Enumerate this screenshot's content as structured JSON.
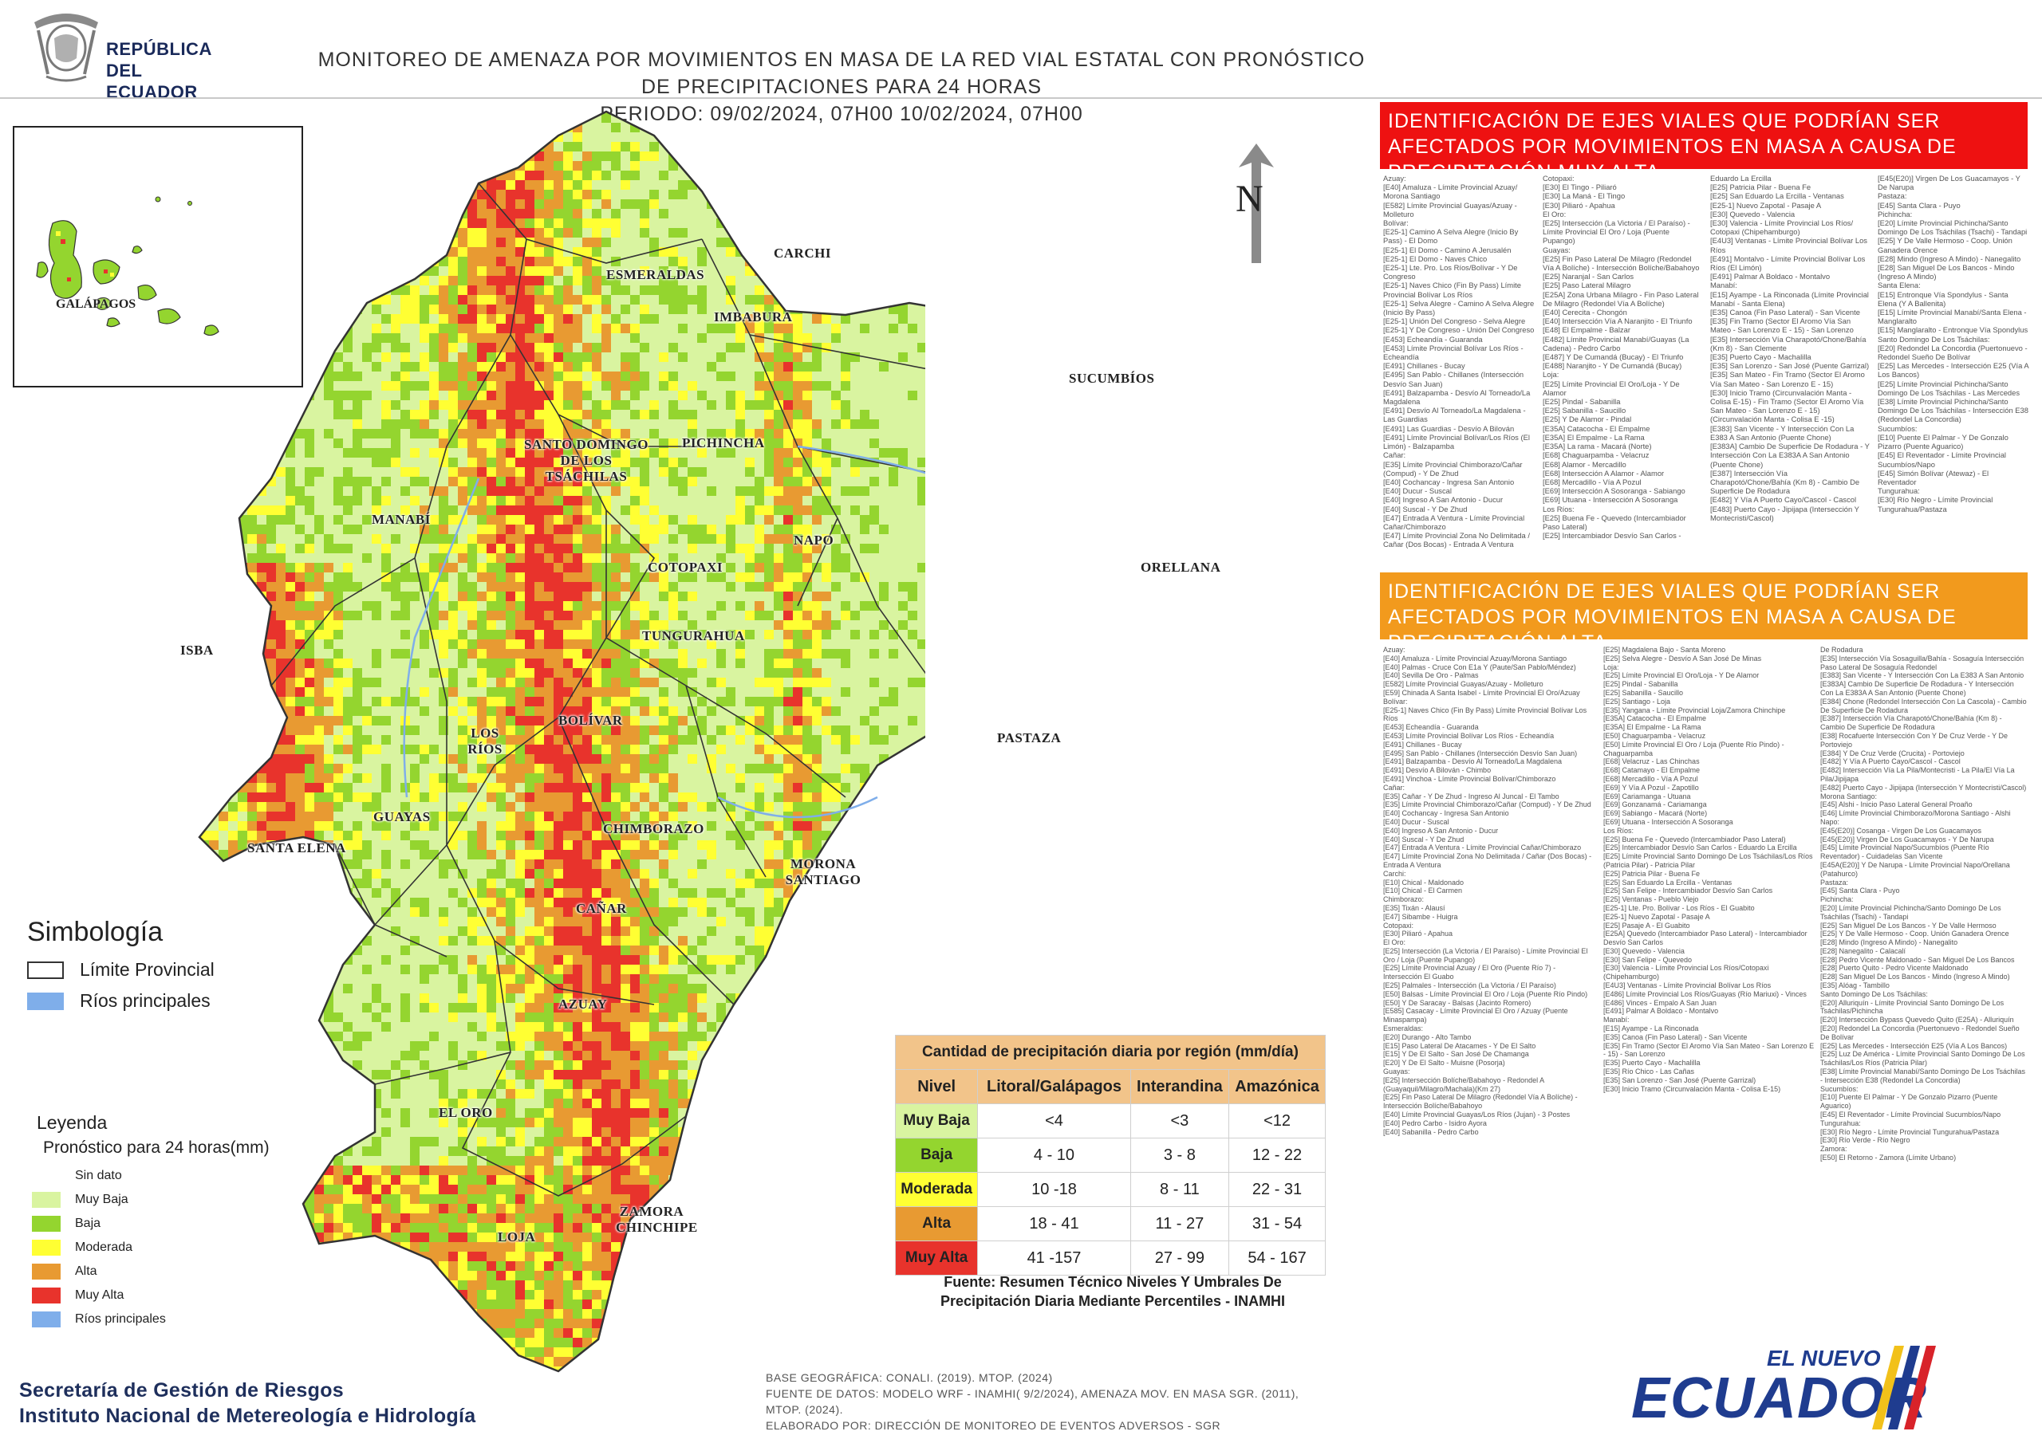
{
  "header": {
    "logo_text_line1": "REPÚBLICA",
    "logo_text_line2": "DEL ECUADOR",
    "title_line1": "MONITOREO DE AMENAZA POR MOVIMIENTOS EN MASA DE LA RED VIAL  ESTATAL  CON PRONÓSTICO  DE  PRECIPITACIONES PARA 24 HORAS",
    "title_line2": "PERIODO: 09/02/2024, 07H00 10/02/2024, 07H00"
  },
  "map": {
    "north_label": "N",
    "inset_label": "GALÁPAGOS",
    "provinces": [
      "ESMERALDAS",
      "CARCHI",
      "IMBABURA",
      "SUCUMBÍOS",
      "SANTO DOMINGO DE LOS TSÁCHILAS",
      "PICHINCHA",
      "MANABÍ",
      "NAPO",
      "ORELLANA",
      "COTOPAXI",
      "TUNGURAHUA",
      "ISBA",
      "BOLÍVAR",
      "LOS RÍOS",
      "PASTAZA",
      "GUAYAS",
      "SANTA ELENA",
      "CHIMBORAZO",
      "MORONA SANTIAGO",
      "CAÑAR",
      "AZUAY",
      "EL ORO",
      "ZAMORA CHINCHIPE",
      "LOJA"
    ],
    "colors": {
      "muy_baja": "#d9f4a0",
      "baja": "#94d52f",
      "moderada": "#ffff33",
      "alta": "#e89a32",
      "muy_alta": "#e8332c",
      "rios": "#7faeea",
      "limite": "#333333"
    }
  },
  "symbology": {
    "title": "Simbología",
    "items": [
      {
        "label": "Límite Provincial",
        "icon": "outline-box-icon"
      },
      {
        "label": "Ríos principales",
        "icon": "river-box-icon"
      }
    ]
  },
  "legend": {
    "title": "Leyenda",
    "subtitle": "Pronóstico para 24 horas(mm)",
    "items": [
      {
        "label": "Sin dato",
        "color": "#ffffff"
      },
      {
        "label": "Muy Baja",
        "color": "#d9f4a0"
      },
      {
        "label": "Baja",
        "color": "#94d52f"
      },
      {
        "label": "Moderada",
        "color": "#ffff33"
      },
      {
        "label": "Alta",
        "color": "#e89a32"
      },
      {
        "label": "Muy Alta",
        "color": "#e8332c"
      },
      {
        "label": "Ríos principales",
        "color": "#7faeea"
      }
    ]
  },
  "precip_table": {
    "caption": "Cantidad de precipitación diaria por región (mm/día)",
    "headers": [
      "Nivel",
      "Litoral/Galápagos",
      "Interandina",
      "Amazónica"
    ],
    "rows": [
      {
        "nivel": "Muy Baja",
        "color": "#d9f4a0",
        "litoral": "<4",
        "interandina": "<3",
        "amazonica": "<12"
      },
      {
        "nivel": "Baja",
        "color": "#94d52f",
        "litoral": "4 - 10",
        "interandina": "3 - 8",
        "amazonica": "12 - 22"
      },
      {
        "nivel": "Moderada",
        "color": "#ffff33",
        "litoral": "10 -18",
        "interandina": "8 - 11",
        "amazonica": "22 - 31"
      },
      {
        "nivel": "Alta",
        "color": "#e89a32",
        "litoral": "18 - 41",
        "interandina": "11 - 27",
        "amazonica": "31 - 54"
      },
      {
        "nivel": "Muy Alta",
        "color": "#e8332c",
        "litoral": "41 -157",
        "interandina": "27 - 99",
        "amazonica": "54 - 167"
      }
    ],
    "source_line1": "Fuente: Resumen Técnico Niveles Y Umbrales De",
    "source_line2": "Precipitación Diaria Mediante Percentiles - INAMHI"
  },
  "panel_muy_alta": {
    "title": "IDENTIFICACIÓN DE EJES VIALES QUE PODRÍAN SER AFECTADOS POR MOVIMIENTOS EN MASA A CAUSA DE PRECIPITACIÓN MUY ALTA",
    "col1": [
      "Azuay:",
      "[E40] Amaluza - Límite Provincial Azuay/ Morona Santiago",
      "[E582] Límite Provincial Guayas/Azuay - Molleturo",
      "Bolívar:",
      "[E25-1] Camino A Selva Alegre (Inicio By Pass) - El Domo",
      "[E25-1] El Domo - Camino A Jerusalén",
      "[E25-1] El Domo - Naves Chico",
      "[E25-1] Lte. Pro. Los Ríos/Bolívar - Y De Congreso",
      "[E25-1] Naves Chico (Fin By Pass) Límite Provincial Bolívar Los Ríos",
      "[E25-1] Selva Alegre - Camino A Selva Alegre (Inicio By Pass)",
      "[E25-1] Unión Del Congreso - Selva Alegre",
      "[E25-1] Y De Congreso - Unión Del Congreso",
      "[E453] Echeandía - Guaranda",
      "[E453] Límite Provincial Bolívar Los Ríos - Echeandía",
      "[E491] Chillanes - Bucay",
      "[E495] San Pablo - Chillanes (Intersección Desvío San Juan)",
      "[E491] Balzapamba - Desvío Al Torneado/La Magdalena",
      "[E491] Desvío Al Torneado/La Magdalena - Las Guardias",
      "[E491] Las Guardias - Desvío A Bilován",
      "[E491] Límite Provincial Bolívar/Los Ríos (El Limón) - Balzapamba",
      "Cañar:",
      "[E35] Límite Provincial Chimborazo/Cañar (Compud) - Y De Zhud",
      "[E40] Cochancay - Ingresa San Antonio",
      "[E40] Ducur - Suscal",
      "[E40] Ingreso A San Antonio - Ducur",
      "[E40] Suscal - Y De Zhud",
      "[E47] Entrada A Ventura - Límite Provincial Cañar/Chimborazo",
      "[E47] Límite Provincial Zona No Delimitada / Cañar (Dos Bocas) - Entrada A Ventura"
    ],
    "col2": [
      "Cotopaxi:",
      "[E30] El Tingo - Piliaró",
      "[E30] La Maná - El Tingo",
      "[E30] Piliaró - Apahua",
      "El Oro:",
      "[E25] Intersección (La Victoria / El Paraíso) - Límite Provincial El Oro / Loja (Puente Pupango)",
      "Guayas:",
      "[E25] Fin Paso Lateral De Milagro (Redondel Vía A Bolíche) - Intersección Bolíche/Babahoyo",
      "[E25] Naranjal - San Carlos",
      "[E25] Paso Lateral Milagro",
      "[E25A] Zona Urbana Milagro - Fin Paso Lateral De Milagro (Redondel Vía A Bolíche)",
      "[E40] Cerecita - Chongón",
      "[E40] Intersección Vía A Naranjito - El Triunfo",
      "[E48] El Empalme - Balzar",
      "[E482] Límite Provincial Manabí/Guayas (La Cadena) - Pedro Carbo",
      "[E487] Y De Cumandá (Bucay) - El Triunfo",
      "[E488] Naranjito - Y De Cumandá (Bucay)",
      "Loja:",
      "[E25] Límite Provincial El Oro/Loja - Y De Alamor",
      "[E25] Pindal - Sabanilla",
      "[E25] Sabanilla - Saucillo",
      "[E25] Y De Alamor - Pindal",
      "[E35A] Catacocha - El Empalme",
      "[E35A] El Empalme - La Rama",
      "[E35A] La rama - Macará (Norte)",
      "[E68] Chaguarpamba - Velacruz",
      "[E68] Alamor - Mercadillo",
      "[E68] Intersección A Alamor - Alamor",
      "[E68] Mercadillo - Vía A Pozul",
      "[E69] Intersección A Sosoranga - Sabiango",
      "[E69] Utuana - Intersección A Sosoranga",
      "Los Ríos:",
      "[E25] Buena Fe - Quevedo (Intercambiador Paso Lateral)",
      "[E25] Intercambiador Desvío San Carlos -"
    ],
    "col3": [
      "Eduardo La Ercilla",
      "[E25] Patricia Pilar - Buena Fe",
      "[E25] San Eduardo La Ercilla - Ventanas",
      "[E25-1] Nuevo Zapotal - Pasaje A",
      "[E30] Quevedo - Valencia",
      "[E30] Valencia - Límite Provincial Los Ríos/ Cotopaxi (Chipehamburgo)",
      "[E4U3] Ventanas - Límite Provincial Bolívar Los Ríos",
      "[E491] Montalvo - Límite Provincial Bolívar Los Ríos (El Limón)",
      "[E491] Palmar A Boldaco - Montalvo",
      "Manabí:",
      "[E15] Ayampe - La Rinconada (Límite Provincial Manabí - Santa Elena)",
      "[E35] Canoa (Fin Paso Lateral) - San Vicente",
      "[E35] Fin Tramo (Sector El Aromo Vía San Mateo - San Lorenzo E - 15) - San Lorenzo",
      "[E35] Intersección Vía Charapotó/Chone/Bahía (Km 8) - San Clemente",
      "[E35] Puerto Cayo - Machalilla",
      "[E35] San Lorenzo - San José (Puente Garrizal)",
      "[E35] San Mateo - Fin Tramo (Sector El Aromo Vía San Mateo - San Lorenzo E - 15)",
      "[E30] Inicio Tramo (Circunvalación Manta - Colisa E-15) - Fin Tramo (Sector El Aromo Vía San Mateo - San Lorenzo E - 15)",
      "(Circunvalación Manta - Colisa E -15)",
      "[E383] San Vicente - Y Intersección Con La E383 A San Antonio (Puente Chone)",
      "[E383A] Cambio De Superficie De Rodadura - Y Intersección Con La E383A A San Antonio (Puente Chone)",
      "[E387] Intersección Vía Charapotó/Chone/Bahía (Km 8) - Cambio De Superficie De Rodadura",
      "[E482] Y Vía A Puerto Cayo/Cascol - Cascol",
      "[E483] Puerto Cayo - Jipijapa (Intersección Y Montecristi/Cascol)"
    ],
    "col4": [
      "[E45(E20)] Virgen De Los Guacamayos - Y De Narupa",
      "Pastaza:",
      "[E45] Santa Clara - Puyo",
      "Pichincha:",
      "[E20] Límite Provincial Pichincha/Santo Domingo De Los Tsáchilas (Tsachi) - Tandapi",
      "[E25] Y De Valle Hermoso - Coop. Unión Ganadera Orence",
      "[E28] Mindo (Ingreso A Mindo) - Nanegalito",
      "[E28] San Miguel De Los Bancos - Mindo (Ingreso A Mindo)",
      "Santa Elena:",
      "[E15] Entronque Vía Spondylus - Santa Elena (Y A Ballenita)",
      "[E15] Límite Provincial Manabí/Santa Elena - Manglaralto",
      "[E15] Manglaralto - Entronque Vía Spondylus",
      "Santo Domingo De Los Tsáchilas:",
      "[E20] Redondel La Concordia (Puertonuevo - Redondel Sueño De Bolívar",
      "[E25] Las Mercedes - Intersección E25 (Vía A Los Bancos)",
      "[E25] Límite Provincial Pichincha/Santo Domingo De Los Tsáchilas - Las Mercedes",
      "[E38] Límite Provincial Pichincha/Santo Domingo De Los Tsáchilas - Intersección E38 (Redondel La Concordia)",
      "Sucumbíos:",
      "[E10] Puente El Palmar - Y De Gonzalo Pizarro (Puente Aguarico)",
      "[E45] El Reventador - Límite Provincial Sucumbíos/Napo",
      "[E45] Simón Bolívar (Atewaz) - El Reventador",
      "Tungurahua:",
      "[E30] Río Negro - Límite Provincial Tungurahua/Pastaza"
    ]
  },
  "panel_alta": {
    "title": "IDENTIFICACIÓN DE EJES VIALES QUE PODRÍAN SER AFECTADOS POR MOVIMIENTOS EN MASA A CAUSA DE PRECIPITACIÓN  ALTA",
    "col1": [
      "Azuay:",
      "[E40] Amaluza - Límite Provincial Azuay/Morona Santiago",
      "[E40] Palmas - Cruce Con E1a Y (Paute/San Pablo/Méndez)",
      "[E40] Sevilla De Oro - Palmas",
      "[E582] Límite Provincial Guayas/Azuay - Molleturo",
      "[E59] Chinada A Santa Isabel - Límite Provincial El Oro/Azuay",
      "Bolívar:",
      "[E25-1] Naves Chico (Fin By Pass) Límite Provincial Bolívar Los Ríos",
      "[E453] Echeandía - Guaranda",
      "[E453] Límite Provincial Bolívar Los Ríos - Echeandía",
      "[E491] Chillanes - Bucay",
      "[E495] San Pablo - Chillanes (Intersección Desvío San Juan)",
      "[E491] Balzapamba - Desvío Al Torneado/La Magdalena",
      "[E491] Desvío A Bilován - Chimbo",
      "[E491] Vinchoa - Límite Provincial Bolívar/Chimborazo",
      "Cañar:",
      "[E35] Cañar - Y De Zhud - Ingreso Al Juncal - El Tambo",
      "[E35] Límite Provincial Chimborazo/Cañar (Compud) - Y De Zhud",
      "[E40] Cochancay - Ingresa San Antonio",
      "[E40] Ducur - Suscal",
      "[E40] Ingreso A San Antonio - Ducur",
      "[E40] Suscal - Y De Zhud",
      "[E47] Entrada A Ventura - Límite Provincial Cañar/Chimborazo",
      "[E47] Límite Provincial Zona No Delimitada / Cañar (Dos Bocas) - Entrada A Ventura",
      "Carchi:",
      "[E10] Chical - Maldonado",
      "[E10] Chical - El Carmen",
      "Chimborazo:",
      "[E35] Tixán - Alausí",
      "[E47] Sibambe - Huigra",
      "Cotopaxi:",
      "[E30] Piliaró - Apahua",
      "El Oro:",
      "[E25] Intersección (La Victoria / El Paraíso) - Límite Provincial El Oro / Loja (Puente Pupango)",
      "[E25] Límite Provincial Azuay / El Oro (Puente Río 7) - Intersección El Guabo",
      "[E25] Palmales - Intersección (La Victoria / El Paraíso)",
      "[E50] Balsas - Límite Provincial El Oro / Loja (Puente Río Pindo)",
      "[E50] Y De Saracay - Balsas (Jacinto Romero)",
      "[E585] Casacay - Límite Provincial El Oro / Azuay (Puente Minaspampa)",
      "Esmeraldas:",
      "[E20] Durango - Alto Tambo",
      "[E15] Paso Lateral De Atacames - Y De El Salto",
      "[E15] Y De El Salto - San José De Chamanga",
      "[E20] Y De El Salto - Muisne (Posorja)",
      "Guayas:",
      "[E25] Intersección Bolíche/Babahoyo - Redondel A (Guayaquil/Milagro/Machala)(Km 27)",
      "[E25] Fin Paso Lateral De Milagro (Redondel Vía A Bolíche) - Intersección Bolíche/Babahoyo",
      "[E40] Límite Provincial Guayas/Los Ríos (Jujan) - 3 Postes",
      "[E40] Pedro Carbo - Isidro Ayora",
      "[E40] Sabanilla - Pedro Carbo"
    ],
    "col2": [
      "[E25] Magdalena Bajo - Santa Moreno",
      "[E25] Selva Alegre - Desvío A San José De Minas",
      "Loja:",
      "[E25] Límite Provincial El Oro/Loja - Y De Alamor",
      "[E25] Pindal - Sabanilla",
      "[E25] Sabanilla - Saucillo",
      "[E25] Santiago - Loja",
      "[E35] Yangana - Límite Provincial Loja/Zamora Chinchipe",
      "[E35A] Catacocha - El Empalme",
      "[E35A] El Empalme - La Rama",
      "[E50] Chaguarpamba - Velacruz",
      "[E50] Límite Provincial El Oro / Loja (Puente Río Pindo) - Chaguarpamba",
      "[E68] Velacruz - Las Chinchas",
      "[E68] Catamayo - El Empalme",
      "[E68] Mercadillo - Vía A Pozul",
      "[E69] Y Vía A Pozul - Zapotillo",
      "[E69] Cariamanga - Utuana",
      "[E69] Gonzanamá - Cariamanga",
      "[E69] Sabiango - Macará (Norte)",
      "[E69] Utuana - Intersección A Sosoranga",
      "Los Ríos:",
      "[E25] Buena Fe - Quevedo (Intercambiador Paso Lateral)",
      "[E25] Intercambiador Desvío San Carlos - Eduardo La Ercilla",
      "[E25] Límite Provincial Santo Domingo De Los Tsáchilas/Los Ríos (Patricia Pilar) - Patricia Pilar",
      "[E25] Patricia Pilar - Buena Fe",
      "[E25] San Eduardo La Ercilla - Ventanas",
      "[E25] San Felipe - Intercambiador Desvío San Carlos",
      "[E25] Ventanas - Pueblo Viejo",
      "[E25-1] Lte. Pro. Bolívar - Los Ríos - El Guabito",
      "[E25-1] Nuevo Zapotal - Pasaje A",
      "[E25] Pasaje A - El Guabito",
      "[E25A] Quevedo (Intercambiador Paso Lateral) - Intercambiador Desvío San Carlos",
      "[E30] Quevedo - Valencia",
      "[E30] San Felipe - Quevedo",
      "[E30] Valencia - Límite Provincial Los Ríos/Cotopaxi (Chipehamburgo)",
      "[E4U3] Ventanas - Límite Provincial Bolívar Los Ríos",
      "[E486] Límite Provincial Los Ríos/Guayas (Río Mariuxi) - Vinces",
      "[E486] Vinces - Empalo A San Juan",
      "[E491] Palmar A Boldaco - Montalvo",
      "Manabí:",
      "[E15] Ayampe - La Rinconada",
      "[E35] Canoa (Fin Paso Lateral) - San Vicente",
      "[E35] Fin Tramo (Sector El Aromo Vía San Mateo - San Lorenzo E - 15) - San Lorenzo",
      "[E35] Puerto Cayo - Machalilla",
      "[E35] Río Chico - Las Cañas",
      "[E35] San Lorenzo - San José (Puente Garrizal)",
      "[E30] Inicio Tramo (Circunvalación Manta - Colisa E-15)"
    ],
    "col3": [
      "De Rodadura",
      "[E35] Intersección Vía Sosaguilla/Bahía - Sosaguía Intersección Paso Lateral De Sosaguía Redondel",
      "[E383] San Vicente - Y Intersección Con La E383 A San Antonio",
      "[E383A] Cambio De Superficie De Rodadura - Y Intersección Con La E383A A San Antonio (Puente Chone)",
      "[E384] Chone (Redondel Intersección Con La Cascola) - Cambio De Superficie De Rodadura",
      "[E387] Intersección Vía Charapotó/Chone/Bahía (Km 8) - Cambio De Superficie De Rodadura",
      "[E38] Rocafuerte Intersección Con Y De Cruz Verde - Y De Portoviejo",
      "[E384] Y De Cruz Verde (Crucita) - Portoviejo",
      "[E482] Y Vía A Puerto Cayo/Cascol - Cascol",
      "[E482] Intersección Vía La Pila/Montecristi - La Pila/El Vía La Pila/Jipijapa",
      "[E482] Puerto Cayo - Jipijapa (Intersección Y Montecristi/Cascol)",
      "Morona Santiago:",
      "[E45] Alshi - Inicio Paso Lateral General Proaño",
      "[E46] Límite Provincial Chimborazo/Morona Santiago - Alshi",
      "Napo:",
      "[E45(E20)] Cosanga - Virgen De Los Guacamayos",
      "[E45(E20)] Virgen De Los Guacamayos - Y De Narupa",
      "[E45] Límite Provincial Napo/Sucumbíos (Puente Río Reventador) - Cuidadelas San Vicente",
      "[E45A(E20)] Y De Narupa - Límite Provincial Napo/Orellana (Patahurco)",
      "Pastaza:",
      "[E45] Santa Clara - Puyo",
      "Pichincha:",
      "[E20] Límite Provincial Pichincha/Santo Domingo De Los Tsáchilas (Tsachi) - Tandapi",
      "[E25] San Miguel De Los Bancos - Y De Valle Hermoso",
      "[E25] Y De Valle Hermoso - Coop. Unión Ganadera Orence",
      "[E28] Mindo (Ingreso A Mindo) - Nanegalito",
      "[E28] Nanegalito - Calacalí",
      "[E28] Pedro Vicente Maldonado - San Miguel De Los Bancos",
      "[E28] Puerto Quito - Pedro Vicente Maldonado",
      "[E28] San Miguel De Los Bancos - Mindo (Ingreso A Mindo)",
      "[E35] Alóag - Tambillo",
      "Santo Domingo De Los Tsáchilas:",
      "[E20] Alluriquín - Límite Provincial Santo Domingo De Los Tsáchilas/Pichincha",
      "[E20] Intersección Bypass Quevedo Quito (E25A) - Alluriquín",
      "[E20] Redondel La Concordia (Puertonuevo - Redondel Sueño De Bolívar",
      "[E25] Las Mercedes - Intersección E25 (Vía A Los Bancos)",
      "[E25] Luz De América - Límite Provincial Santo Domingo De Los Tsáchilas/Los Ríos (Patricia Pilar)",
      "[E38] Límite Provincial Manabí/Santo Domingo De Los Tsáchilas - Intersección E38 (Redondel La Concordia)",
      "Sucumbíos:",
      "[E10] Puente El Palmar - Y De Gonzalo Pizarro (Puente Aguarico)",
      "[E45] El Reventador - Límite Provincial Sucumbíos/Napo",
      "Tungurahua:",
      "[E30] Río Negro - Límite Provincial Tungurahua/Pastaza",
      "[E30] Río Verde - Río Negro",
      "Zamora:",
      "[E50] El Retorno - Zamora (Límite Urbano)"
    ]
  },
  "footer": {
    "org_line1": "Secretaría de Gestión de Riesgos",
    "org_line2": "Instituto Nacional de Metereología e Hidrología",
    "base_line1": "BASE GEOGRÁFICA: CONALI. (2019). MTOP. (2024)",
    "base_line2": "FUENTE DE DATOS: MODELO WRF - INAMHI( 9/2/2024),  AMENAZA MOV. EN MASA SGR. (2011),",
    "base_line3": "MTOP. (2024).",
    "base_line4": "ELABORADO POR: DIRECCIÓN DE MONITOREO DE EVENTOS ADVERSOS - SGR",
    "brand_line1": "EL NUEVO",
    "brand_line2": "ECUADOR"
  }
}
